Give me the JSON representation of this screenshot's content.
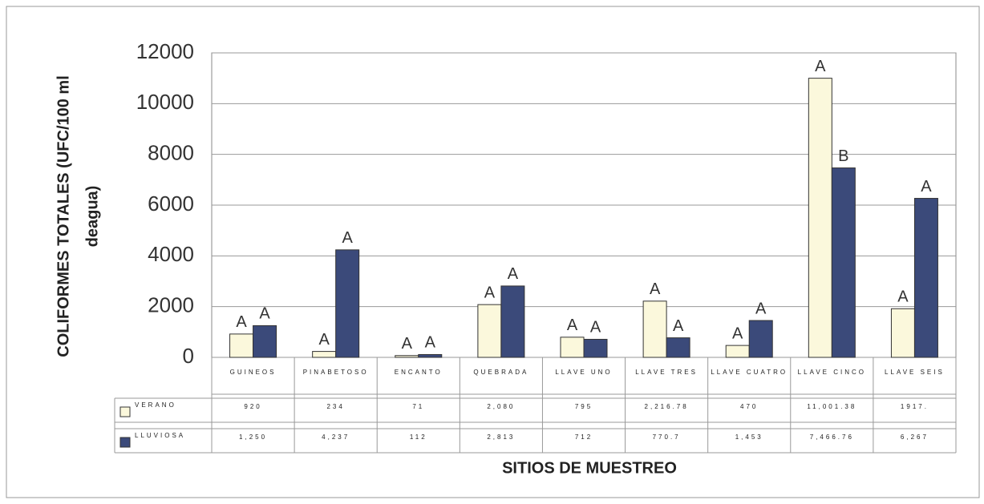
{
  "chart_data": {
    "type": "bar",
    "y_label": [
      "COLIFORMES TOTALES (UFC/100 ml",
      "deagua)"
    ],
    "x_label": "SITIOS DE MUESTREO",
    "categories": [
      "GUINEOS",
      "PINABETOSO",
      "ENCANTO",
      "QUEBRADA",
      "LLAVE UNO",
      "LLAVE TRES",
      "LLAVE CUATRO",
      "LLAVE CINCO",
      "LLAVE SEIS"
    ],
    "series": [
      {
        "name": "VERANO",
        "color": "#fbf8dc",
        "values": [
          920,
          234,
          71,
          2080,
          795,
          2216.78,
          470,
          11001.38,
          1917
        ],
        "value_labels": [
          "920",
          "234",
          "71",
          "2,080",
          "795",
          "2,216.78",
          "470",
          "11,001.38",
          "1917."
        ],
        "letters": [
          "A",
          "A",
          "A",
          "A",
          "A",
          "A",
          "A",
          "A",
          "A"
        ]
      },
      {
        "name": "LLUVIOSA",
        "color": "#3b4a7a",
        "values": [
          1250,
          4237,
          112,
          2813,
          712,
          770.7,
          1453,
          7466.76,
          6267
        ],
        "value_labels": [
          "1,250",
          "4,237",
          "112",
          "2,813",
          "712",
          "770.7",
          "1,453",
          "7,466.76",
          "6,267"
        ],
        "letters": [
          "A",
          "A",
          "A",
          "A",
          "A",
          "A",
          "A",
          "B",
          "A"
        ]
      }
    ],
    "ylim": [
      0,
      12000
    ],
    "yticks": [
      0,
      2000,
      4000,
      6000,
      8000,
      10000,
      12000
    ],
    "grid": true
  }
}
